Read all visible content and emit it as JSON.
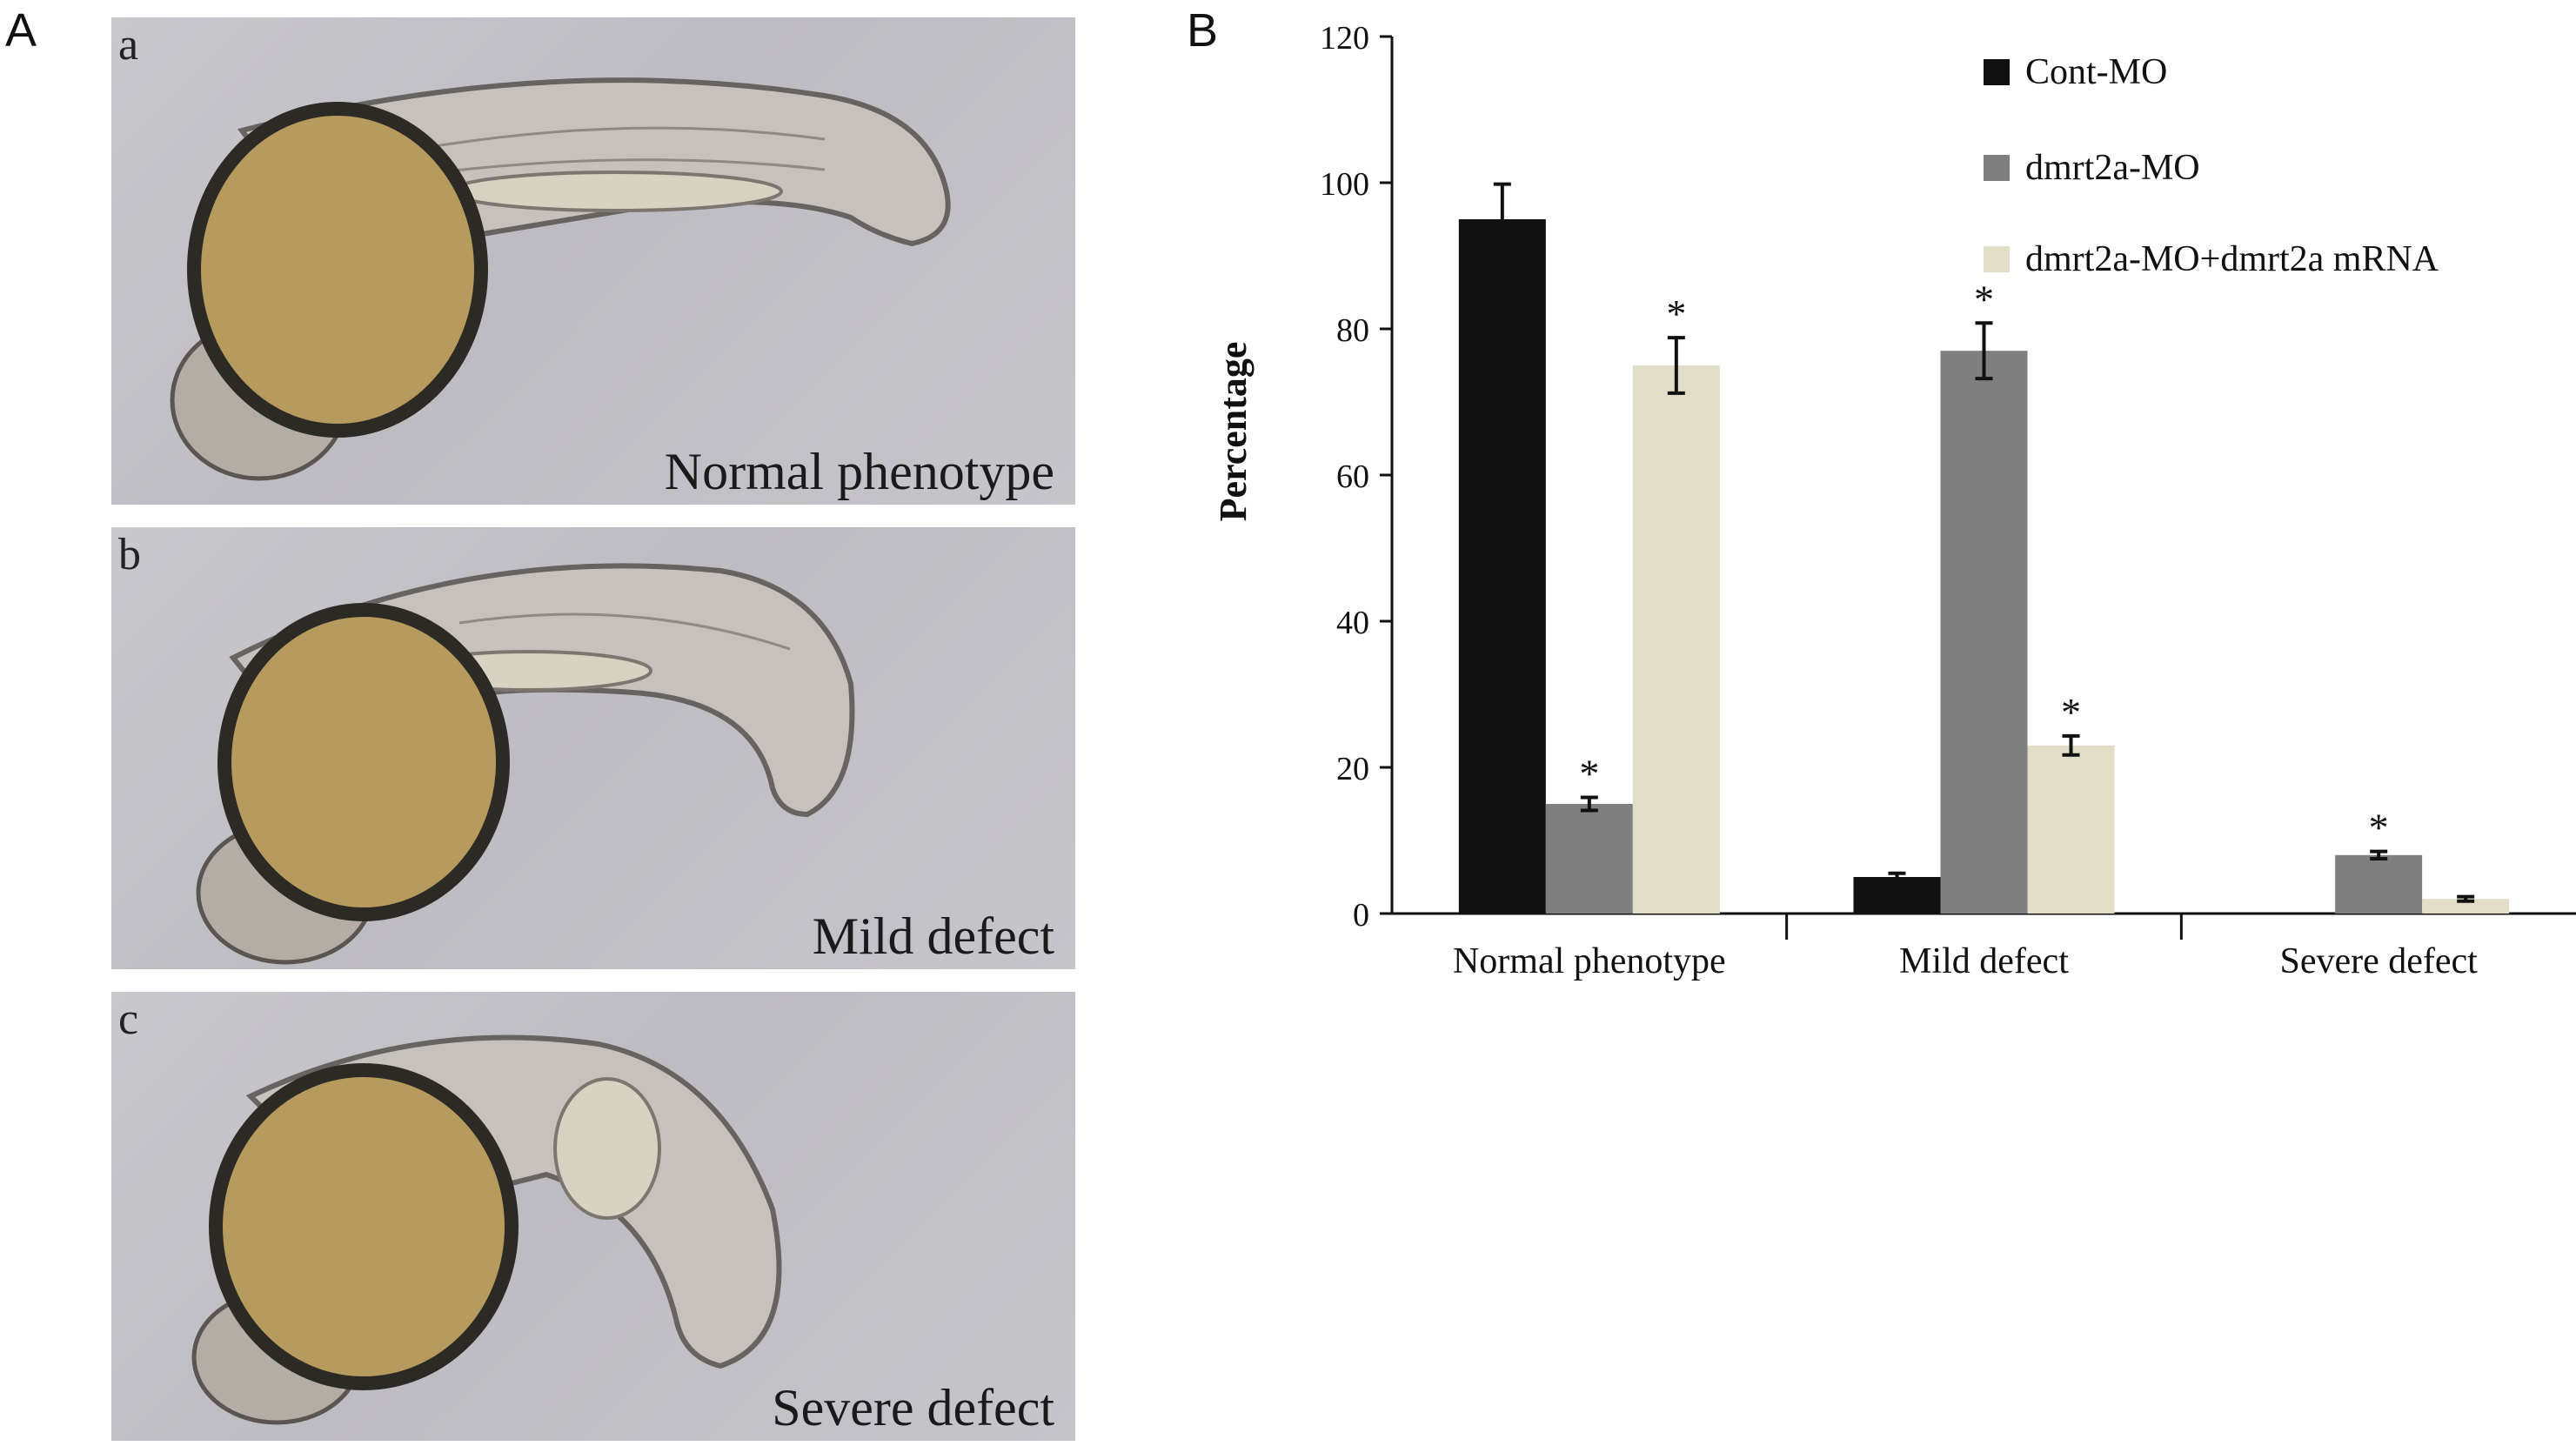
{
  "panel_a": {
    "letter": "A",
    "images": [
      {
        "letter": "a",
        "caption": "Normal phenotype"
      },
      {
        "letter": "b",
        "caption": "Mild defect"
      },
      {
        "letter": "c",
        "caption": "Severe defect"
      }
    ]
  },
  "panel_b": {
    "letter": "B"
  },
  "colors": {
    "cont_mo": "#111111",
    "dmrt2a_mo": "#7f7f7f",
    "rescue": "#e2ddc7",
    "photo_background": "#c4c3c8",
    "yolk": "#b69a5e"
  },
  "chart_data": {
    "type": "bar",
    "categories": [
      "Normal phenotype",
      "Mild defect",
      "Severe defect"
    ],
    "series": [
      {
        "name": "Cont-MO",
        "color": "#111111",
        "values": [
          95,
          5,
          0
        ],
        "errors": [
          4.8,
          0.5,
          0
        ],
        "significant": [
          false,
          false,
          false
        ]
      },
      {
        "name": "dmrt2a-MO",
        "color": "#7f7f7f",
        "values": [
          15,
          77,
          8
        ],
        "errors": [
          0.9,
          3.8,
          0.5
        ],
        "significant": [
          true,
          true,
          true
        ]
      },
      {
        "name": "dmrt2a-MO+dmrt2a mRNA",
        "color": "#e2ddc7",
        "values": [
          75,
          23,
          2
        ],
        "errors": [
          3.8,
          1.3,
          0.3
        ],
        "significant": [
          true,
          true,
          false
        ]
      }
    ],
    "significance_marker": "*",
    "ylabel": "Percentage",
    "ylim": [
      0,
      120
    ],
    "yticks": [
      "0",
      "20",
      "40",
      "60",
      "80",
      "100",
      "120"
    ],
    "legend_position": "top-right",
    "grid": false
  }
}
